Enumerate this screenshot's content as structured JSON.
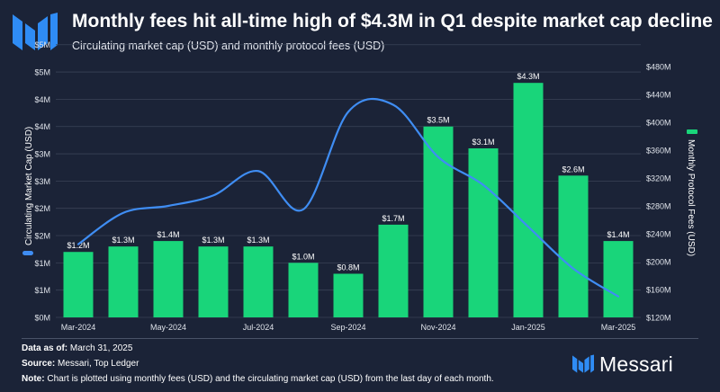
{
  "header": {
    "title": "Monthly fees hit all-time high of $4.3M in Q1 despite market cap decline",
    "subtitle": "Circulating market cap (USD) and monthly protocol fees (USD)"
  },
  "colors": {
    "background": "#1b2337",
    "bars": "#19d57a",
    "line": "#3f8df3",
    "grid": "#3a4357"
  },
  "chart_data": {
    "type": "bar+line",
    "categories": [
      "Mar-2024",
      "Apr-2024",
      "May-2024",
      "Jun-2024",
      "Jul-2024",
      "Aug-2024",
      "Sep-2024",
      "Oct-2024",
      "Nov-2024",
      "Dec-2024",
      "Jan-2025",
      "Feb-2025",
      "Mar-2025"
    ],
    "x_tick_labels": [
      "Mar-2024",
      "",
      "May-2024",
      "",
      "Jul-2024",
      "",
      "Sep-2024",
      "",
      "Nov-2024",
      "",
      "Jan-2025",
      "",
      "Mar-2025"
    ],
    "bars": {
      "name": "Monthly Protocol Fees (USD)",
      "values": [
        1.2,
        1.3,
        1.4,
        1.3,
        1.3,
        1.0,
        0.8,
        1.7,
        3.5,
        3.1,
        4.3,
        2.6,
        1.4
      ],
      "labels": [
        "$1.2M",
        "$1.3M",
        "$1.4M",
        "$1.3M",
        "$1.3M",
        "$1.0M",
        "$0.8M",
        "$1.7M",
        "$3.5M",
        "$3.1M",
        "$4.3M",
        "$2.6M",
        "$1.4M"
      ]
    },
    "line": {
      "name": "Circulating Market Cap (USD)",
      "values": [
        225,
        270,
        280,
        295,
        330,
        275,
        415,
        425,
        350,
        310,
        250,
        190,
        150
      ]
    },
    "left_axis": {
      "label": "Circulating Market Cap (USD)",
      "range": [
        0,
        4.6
      ],
      "ticks": [
        "$0M",
        "$1M",
        "$1M",
        "$2M",
        "$2M",
        "$3M",
        "$3M",
        "$4M",
        "$4M",
        "$5M",
        "$5M"
      ]
    },
    "right_axis": {
      "label": "Monthly Protocol Fees (USD)",
      "range": [
        120,
        480
      ],
      "ticks": [
        "$120M",
        "$160M",
        "$200M",
        "$240M",
        "$280M",
        "$320M",
        "$360M",
        "$400M",
        "$440M",
        "$480M"
      ]
    }
  },
  "footer": {
    "data_as_of_label": "Data as of:",
    "data_as_of_value": "March 31, 2025",
    "source_label": "Source:",
    "source_value": "Messari, Top Ledger",
    "note_label": "Note:",
    "note_value": "Chart is plotted using monthly fees (USD) and the circulating market cap (USD) from the last day of each month."
  },
  "brand": {
    "name": "Messari"
  }
}
